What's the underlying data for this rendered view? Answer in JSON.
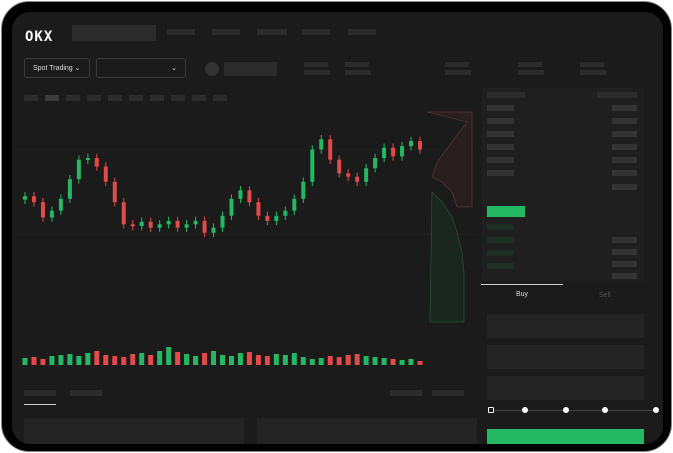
{
  "header": {
    "logo": "OKX"
  },
  "toolbar": {
    "market_type": "Spot Trading",
    "pair_dropdown": ""
  },
  "trade_form": {
    "tabs": [
      "Buy",
      "Sell"
    ],
    "active_tab": "Buy",
    "leverage_steps": 5
  },
  "colors": {
    "up": "#25b864",
    "down": "#e04a4a",
    "background": "#1b1b1b",
    "accent": "#25b864"
  },
  "chart_data": {
    "type": "candlestick",
    "closes": [
      95,
      88,
      70,
      78,
      92,
      115,
      138,
      140,
      130,
      112,
      88,
      62,
      60,
      65,
      58,
      62,
      66,
      58,
      62,
      66,
      52,
      58,
      72,
      92,
      102,
      88,
      72,
      66,
      72,
      78,
      92,
      112,
      150,
      162,
      138,
      122,
      118,
      112,
      128,
      140,
      152,
      142,
      154,
      160,
      150
    ],
    "volumes": [
      7,
      8,
      6,
      9,
      10,
      11,
      9,
      12,
      14,
      10,
      9,
      8,
      11,
      12,
      10,
      14,
      18,
      13,
      11,
      9,
      12,
      14,
      10,
      9,
      12,
      13,
      10,
      9,
      11,
      10,
      12,
      8,
      6,
      7,
      9,
      8,
      10,
      11,
      9,
      8,
      7,
      6,
      5,
      6,
      4
    ]
  }
}
